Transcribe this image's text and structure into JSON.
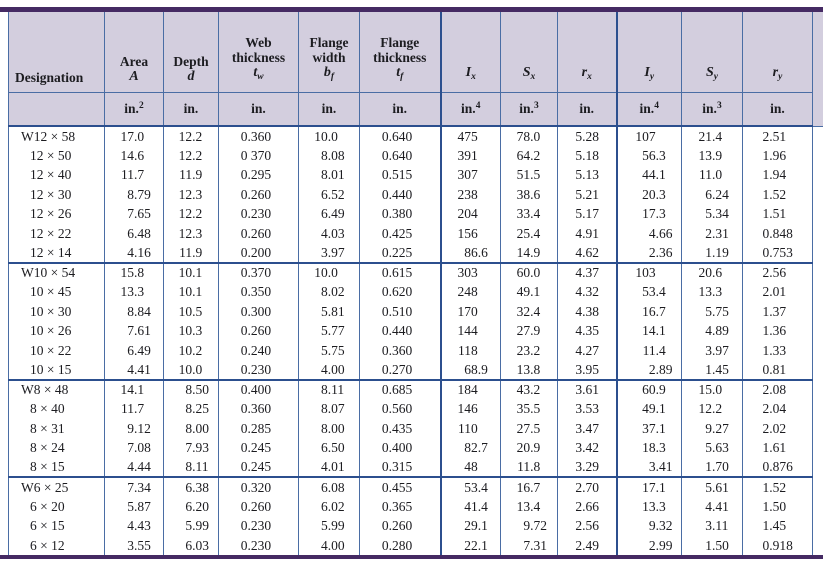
{
  "table": {
    "columns": [
      {
        "id": "designation",
        "label_lines": [
          "Designation"
        ],
        "symbol": "",
        "symbol_sub": "",
        "unit": "",
        "unit_sup": ""
      },
      {
        "id": "area",
        "label_lines": [
          "Area"
        ],
        "symbol": "A",
        "symbol_sub": "",
        "unit": "in.",
        "unit_sup": "2"
      },
      {
        "id": "depth",
        "label_lines": [
          "Depth"
        ],
        "symbol": "d",
        "symbol_sub": "",
        "unit": "in.",
        "unit_sup": ""
      },
      {
        "id": "web-thickness",
        "label_lines": [
          "Web",
          "thickness"
        ],
        "symbol": "t",
        "symbol_sub": "w",
        "unit": "in.",
        "unit_sup": ""
      },
      {
        "id": "flange-width",
        "label_lines": [
          "Flange",
          "width"
        ],
        "symbol": "b",
        "symbol_sub": "f",
        "unit": "in.",
        "unit_sup": ""
      },
      {
        "id": "flange-thickness",
        "label_lines": [
          "Flange",
          "thickness"
        ],
        "symbol": "t",
        "symbol_sub": "f",
        "unit": "in.",
        "unit_sup": ""
      },
      {
        "id": "ix",
        "label_lines": [],
        "symbol": "I",
        "symbol_sub": "x",
        "unit": "in.",
        "unit_sup": "4"
      },
      {
        "id": "sx",
        "label_lines": [],
        "symbol": "S",
        "symbol_sub": "x",
        "unit": "in.",
        "unit_sup": "3"
      },
      {
        "id": "rx",
        "label_lines": [],
        "symbol": "r",
        "symbol_sub": "x",
        "unit": "in.",
        "unit_sup": ""
      },
      {
        "id": "iy",
        "label_lines": [],
        "symbol": "I",
        "symbol_sub": "y",
        "unit": "in.",
        "unit_sup": "4"
      },
      {
        "id": "sy",
        "label_lines": [],
        "symbol": "S",
        "symbol_sub": "y",
        "unit": "in.",
        "unit_sup": "3"
      },
      {
        "id": "ry",
        "label_lines": [],
        "symbol": "r",
        "symbol_sub": "y",
        "unit": "in.",
        "unit_sup": ""
      }
    ],
    "groups": [
      {
        "rows": [
          {
            "designation": "W12 × 58",
            "values": [
              "17.0",
              "12.2",
              "0.360",
              "10.0",
              "0.640",
              "475",
              "78.0",
              "5.28",
              "107",
              "21.4",
              "2.51"
            ]
          },
          {
            "designation": "12 × 50",
            "values": [
              "14.6",
              "12.2",
              "0 370",
              "8.08",
              "0.640",
              "391",
              "64.2",
              "5.18",
              "56.3",
              "13.9",
              "1.96"
            ]
          },
          {
            "designation": "12 × 40",
            "values": [
              "11.7",
              "11.9",
              "0.295",
              "8.01",
              "0.515",
              "307",
              "51.5",
              "5.13",
              "44.1",
              "11.0",
              "1.94"
            ]
          },
          {
            "designation": "12 × 30",
            "values": [
              "8.79",
              "12.3",
              "0.260",
              "6.52",
              "0.440",
              "238",
              "38.6",
              "5.21",
              "20.3",
              "6.24",
              "1.52"
            ]
          },
          {
            "designation": "12 × 26",
            "values": [
              "7.65",
              "12.2",
              "0.230",
              "6.49",
              "0.380",
              "204",
              "33.4",
              "5.17",
              "17.3",
              "5.34",
              "1.51"
            ]
          },
          {
            "designation": "12 × 22",
            "values": [
              "6.48",
              "12.3",
              "0.260",
              "4.03",
              "0.425",
              "156",
              "25.4",
              "4.91",
              "4.66",
              "2.31",
              "0.848"
            ]
          },
          {
            "designation": "12 × 14",
            "values": [
              "4.16",
              "11.9",
              "0.200",
              "3.97",
              "0.225",
              "86.6",
              "14.9",
              "4.62",
              "2.36",
              "1.19",
              "0.753"
            ]
          }
        ]
      },
      {
        "rows": [
          {
            "designation": "W10 × 54",
            "values": [
              "15.8",
              "10.1",
              "0.370",
              "10.0",
              "0.615",
              "303",
              "60.0",
              "4.37",
              "103",
              "20.6",
              "2.56"
            ]
          },
          {
            "designation": "10 × 45",
            "values": [
              "13.3",
              "10.1",
              "0.350",
              "8.02",
              "0.620",
              "248",
              "49.1",
              "4.32",
              "53.4",
              "13.3",
              "2.01"
            ]
          },
          {
            "designation": "10 × 30",
            "values": [
              "8.84",
              "10.5",
              "0.300",
              "5.81",
              "0.510",
              "170",
              "32.4",
              "4.38",
              "16.7",
              "5.75",
              "1.37"
            ]
          },
          {
            "designation": "10 × 26",
            "values": [
              "7.61",
              "10.3",
              "0.260",
              "5.77",
              "0.440",
              "144",
              "27.9",
              "4.35",
              "14.1",
              "4.89",
              "1.36"
            ]
          },
          {
            "designation": "10 × 22",
            "values": [
              "6.49",
              "10.2",
              "0.240",
              "5.75",
              "0.360",
              "118",
              "23.2",
              "4.27",
              "11.4",
              "3.97",
              "1.33"
            ]
          },
          {
            "designation": "10 × 15",
            "values": [
              "4.41",
              "10.0",
              "0.230",
              "4.00",
              "0.270",
              "68.9",
              "13.8",
              "3.95",
              "2.89",
              "1.45",
              "0.81"
            ]
          }
        ]
      },
      {
        "rows": [
          {
            "designation": "W8 × 48",
            "values": [
              "14.1",
              "8.50",
              "0.400",
              "8.11",
              "0.685",
              "184",
              "43.2",
              "3.61",
              "60.9",
              "15.0",
              "2.08"
            ]
          },
          {
            "designation": "8 × 40",
            "values": [
              "11.7",
              "8.25",
              "0.360",
              "8.07",
              "0.560",
              "146",
              "35.5",
              "3.53",
              "49.1",
              "12.2",
              "2.04"
            ]
          },
          {
            "designation": "8 × 31",
            "values": [
              "9.12",
              "8.00",
              "0.285",
              "8.00",
              "0.435",
              "110",
              "27.5",
              "3.47",
              "37.1",
              "9.27",
              "2.02"
            ]
          },
          {
            "designation": "8 × 24",
            "values": [
              "7.08",
              "7.93",
              "0.245",
              "6.50",
              "0.400",
              "82.7",
              "20.9",
              "3.42",
              "18.3",
              "5.63",
              "1.61"
            ]
          },
          {
            "designation": "8 × 15",
            "values": [
              "4.44",
              "8.11",
              "0.245",
              "4.01",
              "0.315",
              "48",
              "11.8",
              "3.29",
              "3.41",
              "1.70",
              "0.876"
            ]
          }
        ]
      },
      {
        "rows": [
          {
            "designation": "W6 × 25",
            "values": [
              "7.34",
              "6.38",
              "0.320",
              "6.08",
              "0.455",
              "53.4",
              "16.7",
              "2.70",
              "17.1",
              "5.61",
              "1.52"
            ]
          },
          {
            "designation": "6 × 20",
            "values": [
              "5.87",
              "6.20",
              "0.260",
              "6.02",
              "0.365",
              "41.4",
              "13.4",
              "2.66",
              "13.3",
              "4.41",
              "1.50"
            ]
          },
          {
            "designation": "6 × 15",
            "values": [
              "4.43",
              "5.99",
              "0.230",
              "5.99",
              "0.260",
              "29.1",
              "9.72",
              "2.56",
              "9.32",
              "3.11",
              "1.45"
            ]
          },
          {
            "designation": "6 × 12",
            "values": [
              "3.55",
              "6.03",
              "0.230",
              "4.00",
              "0.280",
              "22.1",
              "7.31",
              "2.49",
              "2.99",
              "1.50",
              "0.918"
            ]
          }
        ]
      }
    ],
    "colors": {
      "frame_purple": "#452a63",
      "rule_thick_blue": "#2c4f8e",
      "rule_thin_blue": "#4a6da4",
      "header_lavender": "#d3cede"
    }
  }
}
